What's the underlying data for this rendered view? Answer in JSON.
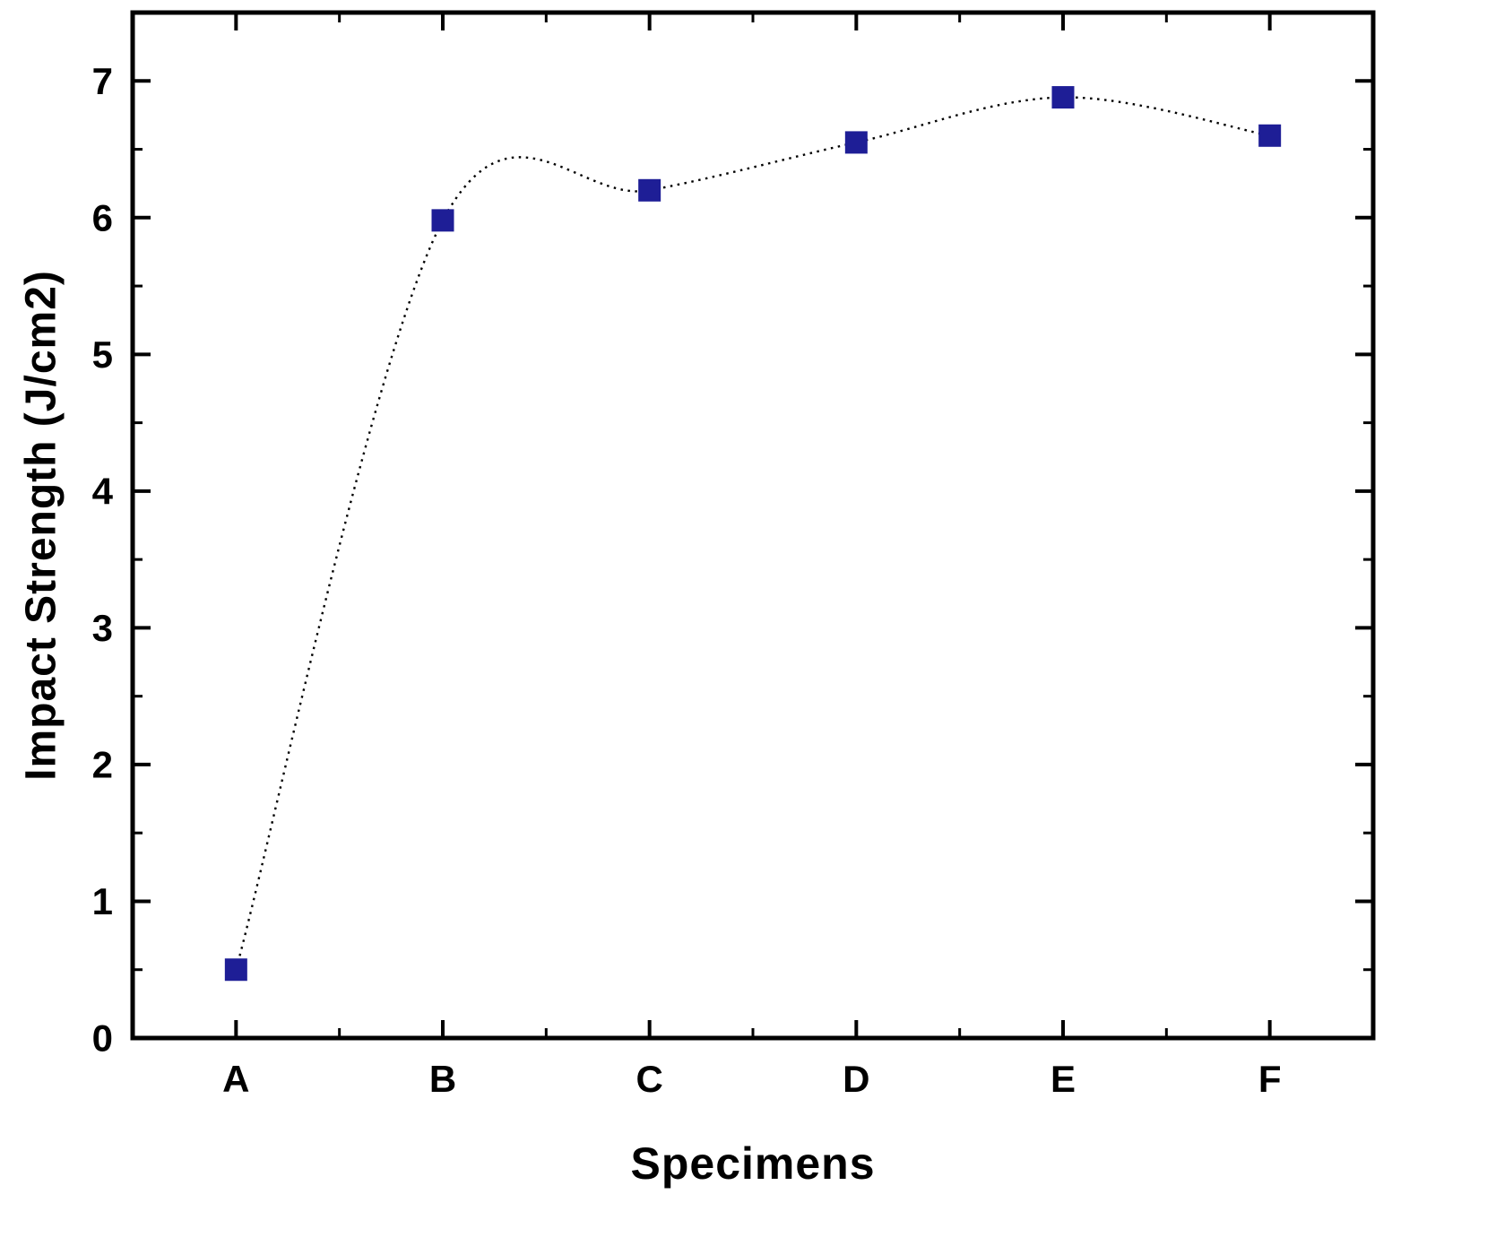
{
  "chart_data": {
    "type": "scatter",
    "title": "",
    "categories": [
      "A",
      "B",
      "C",
      "D",
      "E",
      "F"
    ],
    "series": [
      {
        "name": "Impact Strength",
        "values": [
          0.5,
          5.98,
          6.2,
          6.55,
          6.88,
          6.6
        ]
      }
    ],
    "xlabel": "Specimens",
    "ylabel": "Impact Strength (J/cm2)",
    "ylim": [
      0,
      7.5
    ],
    "yticks": [
      0,
      1,
      2,
      3,
      4,
      5,
      6,
      7
    ],
    "y_minor_step": 0.5,
    "grid": false,
    "legend": "none",
    "marker_shape": "square",
    "marker_color": "#1e1e96",
    "line_color": "#000000",
    "line_style": "dotted",
    "frame_color": "#000000",
    "background_color": "#ffffff"
  }
}
